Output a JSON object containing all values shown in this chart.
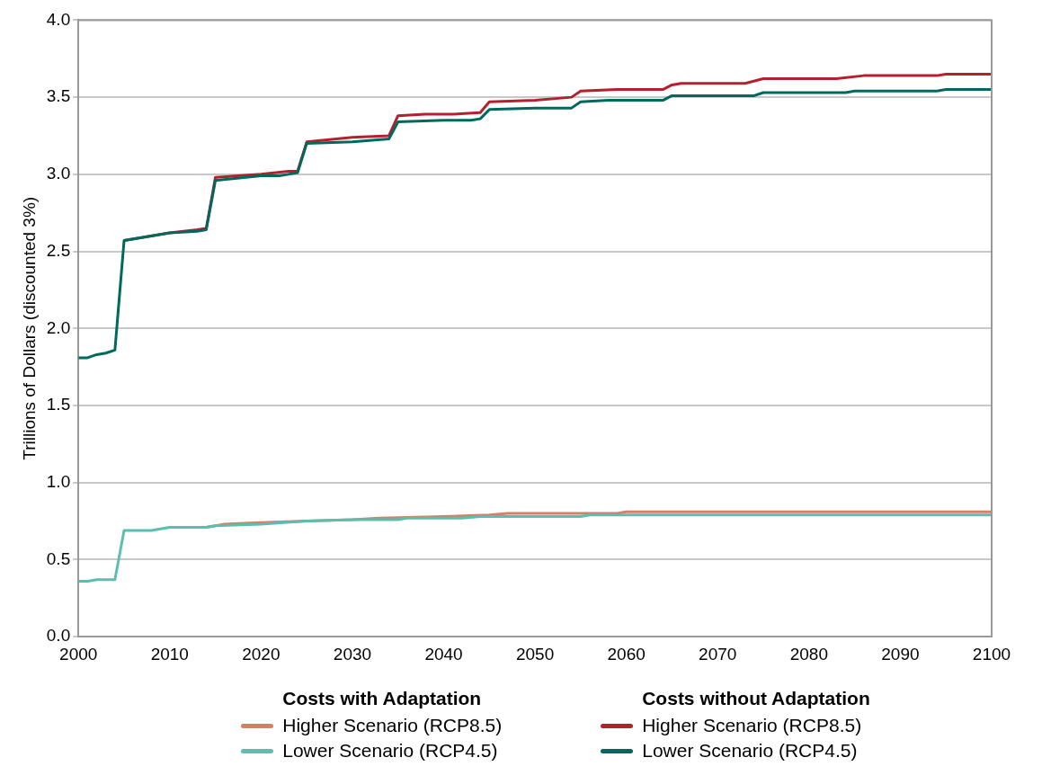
{
  "chart_data": {
    "type": "line",
    "ylabel": "Trillions of Dollars (discounted 3%)",
    "legend_title": [
      "Costs with Adaptation",
      "Costs without Adaptation"
    ],
    "xlim": [
      2000,
      2100
    ],
    "xticks": [
      2000,
      2010,
      2020,
      2030,
      2040,
      2050,
      2060,
      2070,
      2080,
      2090,
      2100
    ],
    "ylim": [
      0,
      4
    ],
    "yticks": [
      {
        "value": 0,
        "label": "0.0"
      },
      0.5,
      {
        "value": 1,
        "label": "1.0"
      },
      1.5,
      {
        "value": 2,
        "label": "2.0"
      },
      2.5,
      {
        "value": 3,
        "label": "3.0"
      },
      3.5,
      {
        "value": 4,
        "label": "4.0"
      }
    ],
    "grid": "y",
    "legend": "bottom",
    "marker": "none",
    "line_style": "solid",
    "series": [
      {
        "name": "Higher Scenario (RCP8.5)",
        "color": "#d47f68",
        "x": [
          2014,
          2016,
          2020,
          2025,
          2030,
          2033,
          2040,
          2045,
          2047,
          2059,
          2060,
          2100
        ],
        "values": [
          0.71,
          0.73,
          0.74,
          0.75,
          0.76,
          0.77,
          0.78,
          0.79,
          0.8,
          0.8,
          0.81,
          0.81
        ]
      },
      {
        "name": "Lower Scenario (RCP4.5)",
        "color": "#5bbfb0",
        "x": [
          2000,
          2001,
          2002,
          2004,
          2005,
          2008,
          2009,
          2010,
          2014,
          2015,
          2020,
          2025,
          2030,
          2035,
          2036,
          2042,
          2044,
          2055,
          2056,
          2100
        ],
        "values": [
          0.36,
          0.36,
          0.37,
          0.37,
          0.69,
          0.69,
          0.7,
          0.71,
          0.71,
          0.72,
          0.73,
          0.75,
          0.76,
          0.76,
          0.77,
          0.77,
          0.78,
          0.78,
          0.79,
          0.79
        ]
      },
      {
        "name": "Higher Scenario (RCP8.5)",
        "color": "#b5202e",
        "x": [
          2005,
          2010,
          2013,
          2014,
          2015,
          2020,
          2023,
          2024,
          2025,
          2030,
          2034,
          2035,
          2038,
          2041,
          2044,
          2045,
          2050,
          2054,
          2055,
          2059,
          2064,
          2065,
          2066,
          2073,
          2075,
          2083,
          2086,
          2094,
          2095,
          2100
        ],
        "values": [
          2.57,
          2.62,
          2.64,
          2.65,
          2.98,
          3.0,
          3.02,
          3.02,
          3.21,
          3.24,
          3.25,
          3.38,
          3.39,
          3.39,
          3.4,
          3.47,
          3.48,
          3.5,
          3.54,
          3.55,
          3.55,
          3.58,
          3.59,
          3.59,
          3.62,
          3.62,
          3.64,
          3.64,
          3.65,
          3.65
        ]
      },
      {
        "name": "Lower Scenario (RCP4.5)",
        "color": "#00695e",
        "x": [
          2000,
          2001,
          2002,
          2003,
          2004,
          2005,
          2010,
          2013,
          2014,
          2015,
          2020,
          2022,
          2024,
          2025,
          2030,
          2034,
          2035,
          2040,
          2043,
          2044,
          2045,
          2050,
          2054,
          2055,
          2058,
          2064,
          2065,
          2074,
          2075,
          2084,
          2085,
          2094,
          2095,
          2100
        ],
        "values": [
          1.81,
          1.81,
          1.83,
          1.84,
          1.86,
          2.57,
          2.62,
          2.63,
          2.64,
          2.96,
          2.99,
          2.99,
          3.01,
          3.2,
          3.21,
          3.23,
          3.34,
          3.35,
          3.35,
          3.36,
          3.42,
          3.43,
          3.43,
          3.47,
          3.48,
          3.48,
          3.51,
          3.51,
          3.53,
          3.53,
          3.54,
          3.54,
          3.55,
          3.55
        ]
      }
    ]
  }
}
